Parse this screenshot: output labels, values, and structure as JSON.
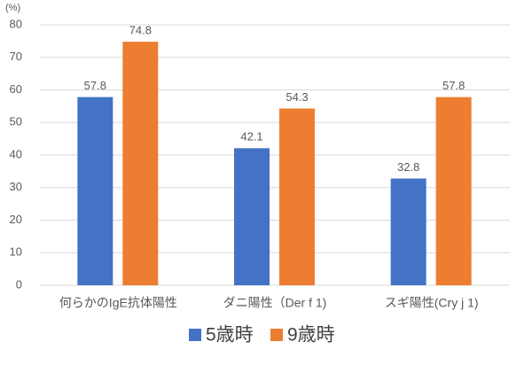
{
  "chart_data": {
    "type": "bar",
    "y_label": "(%)",
    "categories": [
      "何らかのIgE抗体陽性",
      "ダニ陽性（Der f 1)",
      "スギ陽性(Cry j 1)"
    ],
    "series": [
      {
        "name": "5歳時",
        "color": "#4472c4",
        "values": [
          57.8,
          42.1,
          32.8
        ]
      },
      {
        "name": "9歳時",
        "color": "#ed7d31",
        "values": [
          74.8,
          54.3,
          57.8
        ]
      }
    ],
    "ylim": [
      0,
      80
    ],
    "yticks": [
      0,
      10,
      20,
      30,
      40,
      50,
      60,
      70,
      80
    ],
    "grid": true,
    "legend": "bottom"
  }
}
